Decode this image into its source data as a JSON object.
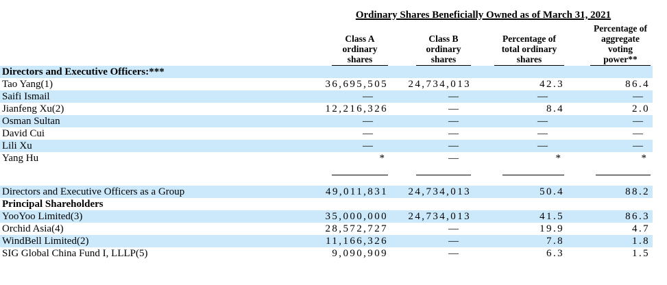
{
  "document": {
    "title": "Ordinary Shares Beneficially Owned as of March 31, 2021"
  },
  "table": {
    "stripe_color": "#cbe9fa",
    "columns": [
      {
        "label": "Class A ordinary shares"
      },
      {
        "label": "Class B ordinary shares"
      },
      {
        "label": "Percentage of total ordinary shares"
      },
      {
        "label": "Percentage of aggregate voting power**"
      }
    ],
    "rows": [
      {
        "type": "section",
        "shaded": true,
        "label": "Directors and Executive Officers:***"
      },
      {
        "type": "data",
        "shaded": false,
        "label": "Tao Yang(1)",
        "values": [
          "36,695,505",
          "24,734,013",
          "42.3",
          "86.4"
        ]
      },
      {
        "type": "data",
        "shaded": true,
        "label": "Saifi Ismail",
        "values": [
          "—",
          "—",
          "—",
          "—"
        ]
      },
      {
        "type": "data",
        "shaded": false,
        "label": "Jianfeng Xu(2)",
        "values": [
          "12,216,326",
          "—",
          "8.4",
          "2.0"
        ]
      },
      {
        "type": "data",
        "shaded": true,
        "label": "Osman Sultan",
        "values": [
          "—",
          "—",
          "—",
          "—"
        ]
      },
      {
        "type": "data",
        "shaded": false,
        "label": "David Cui",
        "values": [
          "—",
          "—",
          "—",
          "—"
        ]
      },
      {
        "type": "data",
        "shaded": true,
        "label": "Lili Xu",
        "values": [
          "—",
          "—",
          "—",
          "—"
        ]
      },
      {
        "type": "data",
        "shaded": false,
        "label": "Yang Hu",
        "values": [
          "*",
          "—",
          "*",
          "*"
        ]
      },
      {
        "type": "rule",
        "shaded": false
      },
      {
        "type": "spacer",
        "shaded": false
      },
      {
        "type": "data",
        "shaded": true,
        "label": "Directors and Executive Officers as a Group",
        "values": [
          "49,011,831",
          "24,734,013",
          "50.4",
          "88.2"
        ]
      },
      {
        "type": "section",
        "shaded": false,
        "label": "Principal Shareholders"
      },
      {
        "type": "data",
        "shaded": true,
        "label": "YooYoo Limited(3)",
        "values": [
          "35,000,000",
          "24,734,013",
          "41.5",
          "86.3"
        ]
      },
      {
        "type": "data",
        "shaded": false,
        "label": "Orchid Asia(4)",
        "values": [
          "28,572,727",
          "—",
          "19.9",
          "4.7"
        ]
      },
      {
        "type": "data",
        "shaded": true,
        "label": "WindBell Limited(2)",
        "values": [
          "11,166,326",
          "—",
          "7.8",
          "1.8"
        ]
      },
      {
        "type": "data",
        "shaded": false,
        "label": "SIG Global China Fund I, LLLP(5)",
        "values": [
          "9,090,909",
          "—",
          "6.3",
          "1.5"
        ]
      }
    ]
  }
}
